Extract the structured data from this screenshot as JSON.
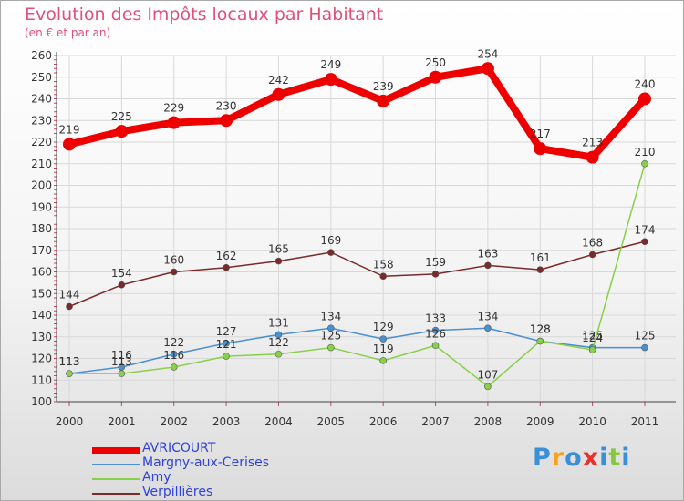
{
  "chart_data": {
    "type": "line",
    "title": "Evolution des Impôts locaux par Habitant",
    "subtitle": "(en € et par an)",
    "categories": [
      "2000",
      "2001",
      "2002",
      "2003",
      "2004",
      "2005",
      "2006",
      "2007",
      "2008",
      "2009",
      "2010",
      "2011"
    ],
    "y_ticks": [
      100,
      110,
      120,
      130,
      140,
      150,
      160,
      170,
      180,
      190,
      200,
      210,
      220,
      230,
      240,
      250,
      260
    ],
    "ylim": [
      100,
      260
    ],
    "grid": true,
    "legend_position": "bottom-left",
    "series": [
      {
        "name": "AVRICOURT",
        "color": "#ee0000",
        "values": [
          219,
          225,
          229,
          230,
          242,
          249,
          239,
          250,
          254,
          217,
          213,
          240
        ],
        "labels": [
          "219",
          "225",
          "229",
          "230",
          "242",
          "249",
          "239",
          "250",
          "254",
          "217",
          "213",
          "240"
        ]
      },
      {
        "name": "Margny-aux-Cerises",
        "color": "#4a8fcf",
        "values": [
          113,
          116,
          122,
          127,
          131,
          134,
          129,
          133,
          134,
          128,
          125,
          125
        ],
        "labels": [
          "113",
          "116",
          "122",
          "127",
          "131",
          "134",
          "129",
          "133",
          "134",
          "128",
          "125",
          "125"
        ]
      },
      {
        "name": "Amy",
        "color": "#88d04a",
        "values": [
          113,
          113,
          116,
          121,
          122,
          125,
          119,
          126,
          107,
          128,
          124,
          210
        ],
        "labels": [
          "113",
          "113",
          "116",
          "121",
          "122",
          "125",
          "119",
          "126",
          "107",
          "128",
          "124",
          "210"
        ]
      },
      {
        "name": "Verpillières",
        "color": "#7a2a2a",
        "values": [
          144,
          154,
          160,
          162,
          165,
          169,
          158,
          159,
          163,
          161,
          168,
          174
        ],
        "labels": [
          "144",
          "154",
          "160",
          "162",
          "165",
          "169",
          "158",
          "159",
          "163",
          "161",
          "168",
          "174"
        ]
      }
    ]
  },
  "logo": {
    "letters": [
      "P",
      "r",
      "o",
      "x",
      "i",
      "t",
      "i"
    ],
    "colors": [
      "#3a8fd8",
      "#f7a21b",
      "#3a8fd8",
      "#e8312f",
      "#3a8fd8",
      "#88c540",
      "#3a8fd8"
    ]
  }
}
